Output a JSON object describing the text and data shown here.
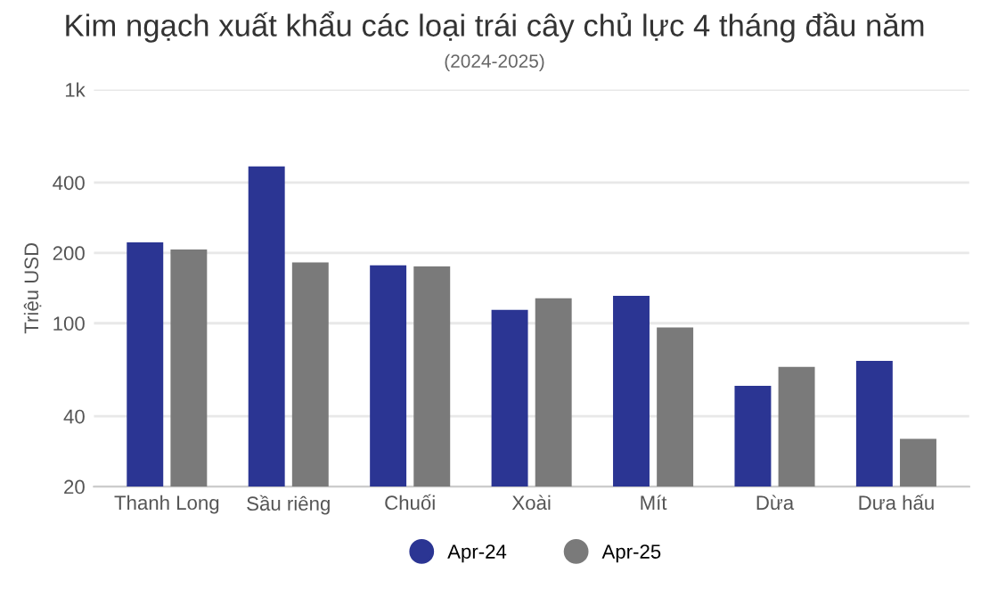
{
  "chart_data": {
    "type": "bar",
    "title": "Kim ngạch xuất khẩu các loại trái cây chủ lực 4 tháng đầu năm",
    "subtitle": "(2024-2025)",
    "ylabel": "Triệu USD",
    "categories": [
      "Thanh Long",
      "Sầu riêng",
      "Chuối",
      "Xoài",
      "Mít",
      "Dừa",
      "Dưa hấu"
    ],
    "series": [
      {
        "name": "Apr-24",
        "color": "#2b3593",
        "values": [
          222,
          469,
          177,
          114,
          131,
          54,
          69
        ]
      },
      {
        "name": "Apr-25",
        "color": "#7a7a7a",
        "values": [
          207,
          182,
          175,
          128,
          96,
          65,
          32
        ]
      }
    ],
    "log": true,
    "ylim": [
      20,
      1000
    ],
    "yticks": [
      20,
      40,
      100,
      200,
      400,
      {
        "value": 1000,
        "label": "1k"
      }
    ],
    "grid": "y",
    "legend": "bottom"
  }
}
